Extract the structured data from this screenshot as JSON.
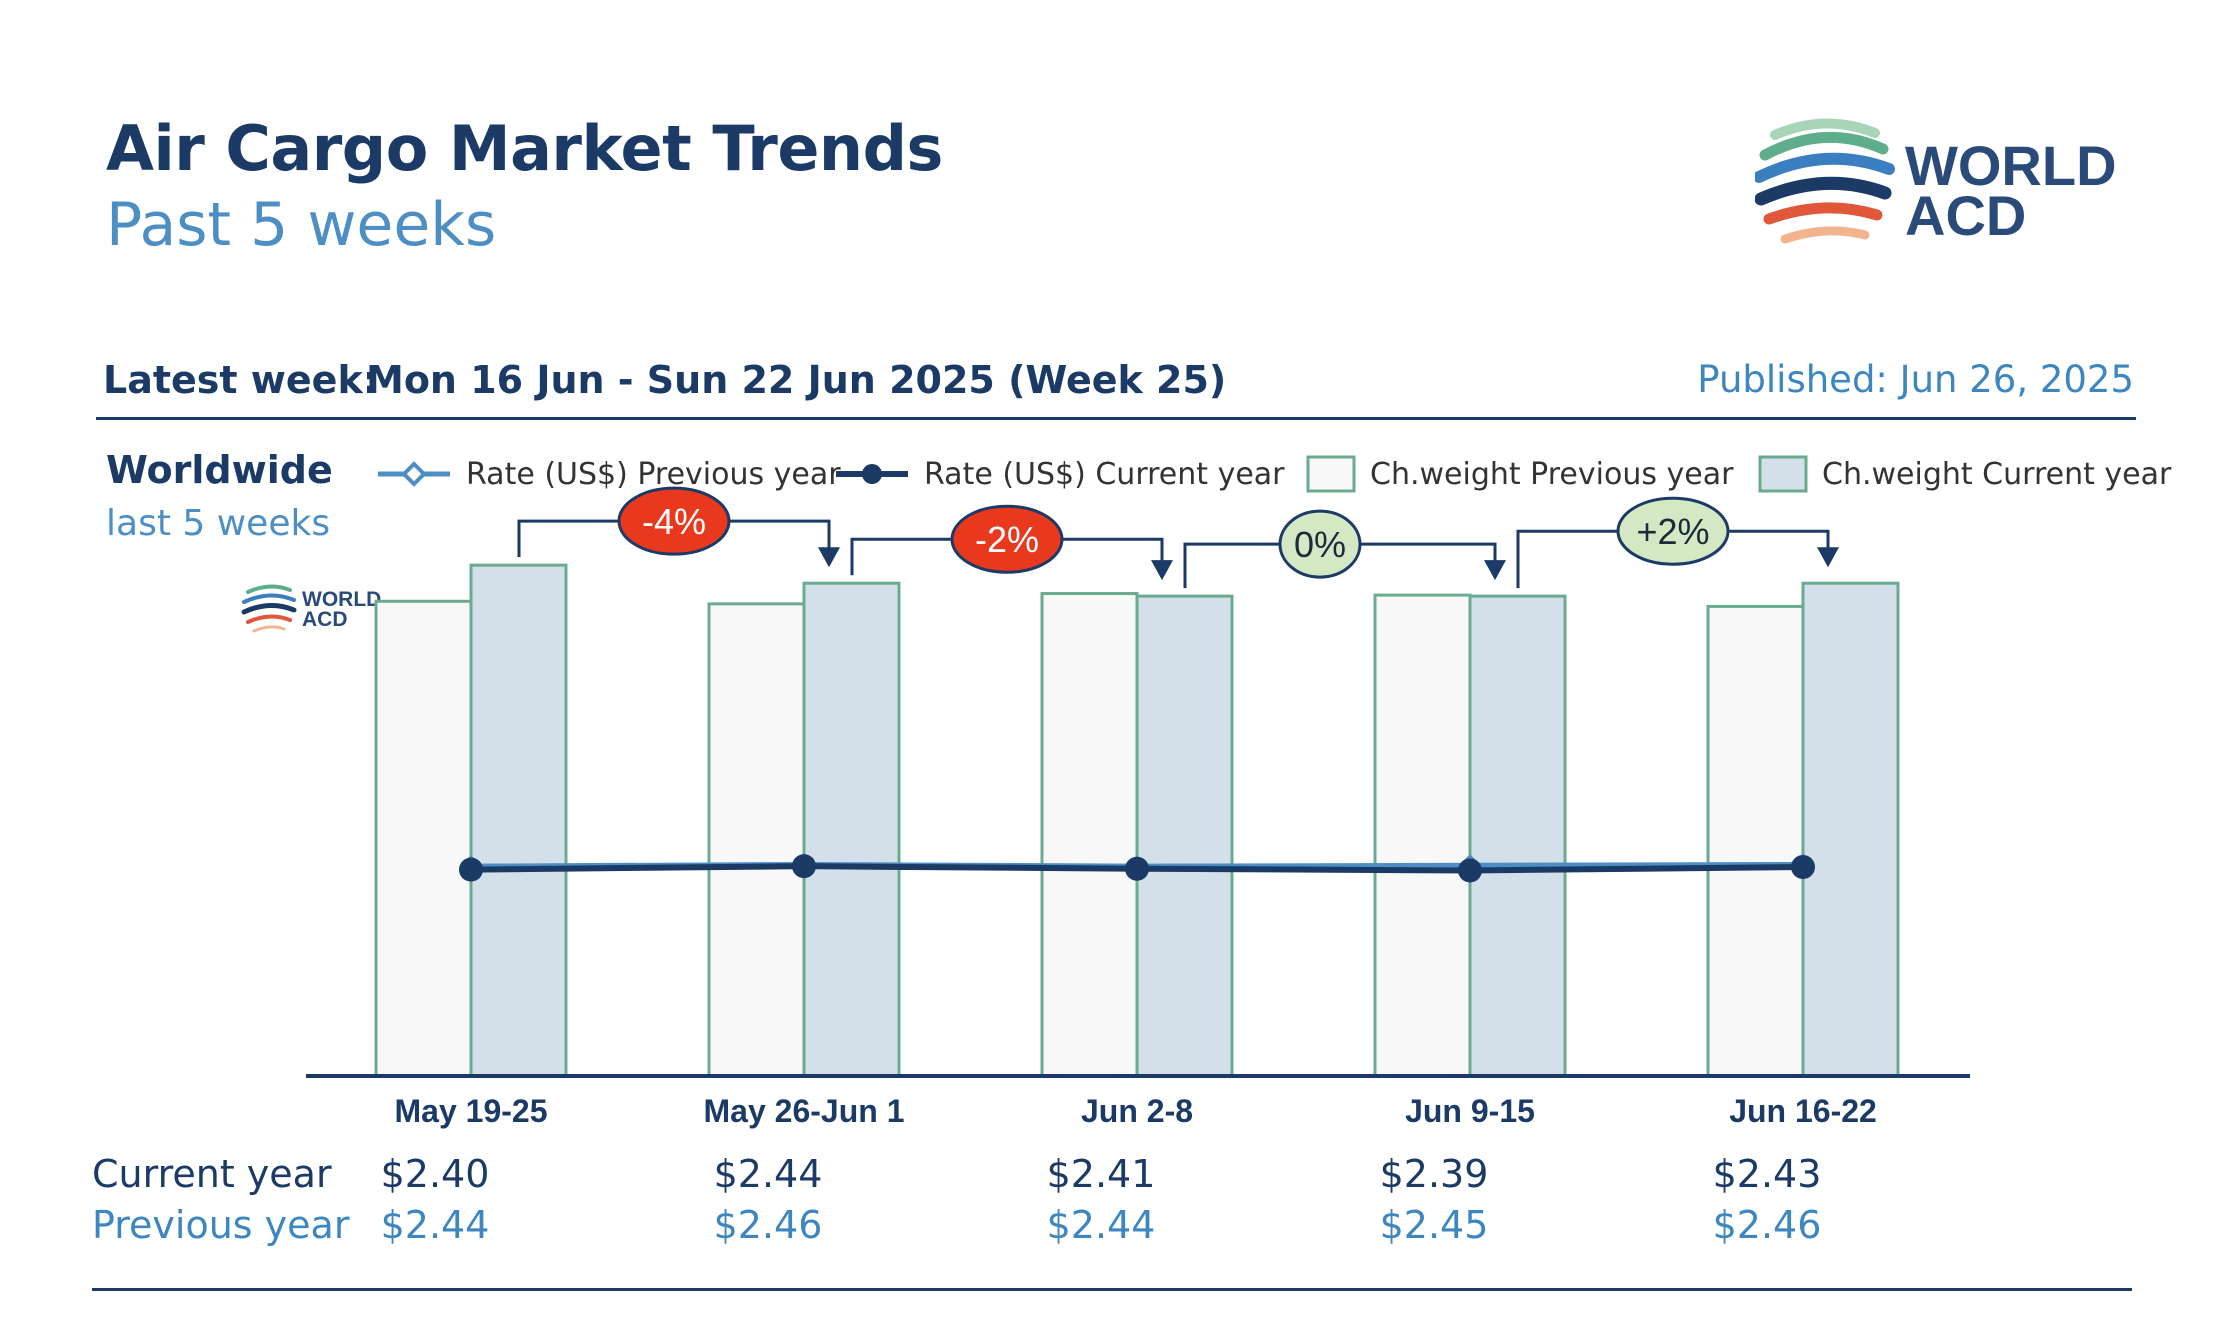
{
  "header": {
    "title": "Air Cargo Market Trends",
    "subtitle": "Past 5 weeks",
    "logo_text_line1": "WORLD",
    "logo_text_line2": "ACD"
  },
  "info": {
    "latest_label": "Latest week:",
    "latest_value": "Mon 16 Jun - Sun 22 Jun 2025 (Week 25)",
    "published": "Published: Jun 26, 2025"
  },
  "region": {
    "name": "Worldwide",
    "period": "last 5 weeks"
  },
  "legend": {
    "rate_prev": "Rate (US$) Previous year",
    "rate_curr": "Rate (US$) Current year",
    "weight_prev": "Ch.weight Previous year",
    "weight_curr": "Ch.weight Current year"
  },
  "table": {
    "current_label": "Current year",
    "previous_label": "Previous year"
  },
  "colors": {
    "navy": "#1b3a66",
    "light_blue": "#4d8fc4",
    "bar_prev_fill": "#f8f8f8",
    "bar_curr_fill": "#d3e0ea",
    "bar_stroke": "#6aab8f",
    "badge_negative": "#e8391f",
    "badge_neutral": "#d4e8c4"
  },
  "chart_data": {
    "type": "bar",
    "categories": [
      "May 19-25",
      "May 26-Jun 1",
      "Jun 2-8",
      "Jun 9-15",
      "Jun 16-22"
    ],
    "weight_index_ylim": [
      0,
      100
    ],
    "series": [
      {
        "name": "Ch.weight Previous year",
        "kind": "bar",
        "values": [
          92,
          91.5,
          93.5,
          93.2,
          91
        ]
      },
      {
        "name": "Ch.weight Current year",
        "kind": "bar",
        "values": [
          99,
          95.5,
          93,
          93,
          95.5
        ]
      },
      {
        "name": "Rate (US$) Previous year",
        "kind": "line",
        "values": [
          2.44,
          2.46,
          2.44,
          2.45,
          2.46
        ]
      },
      {
        "name": "Rate (US$) Current year",
        "kind": "line",
        "values": [
          2.4,
          2.44,
          2.41,
          2.39,
          2.43
        ]
      }
    ],
    "rate_ylim": [
      0,
      6
    ],
    "week_changes": [
      "-4%",
      "-2%",
      "0%",
      "+2%"
    ],
    "week_change_tones": [
      "negative",
      "negative",
      "neutral",
      "positive"
    ],
    "current_rates_display": [
      "$2.40",
      "$2.44",
      "$2.41",
      "$2.39",
      "$2.43"
    ],
    "previous_rates_display": [
      "$2.44",
      "$2.46",
      "$2.44",
      "$2.45",
      "$2.46"
    ],
    "watermark_line1": "WORLD",
    "watermark_line2": "ACD"
  }
}
